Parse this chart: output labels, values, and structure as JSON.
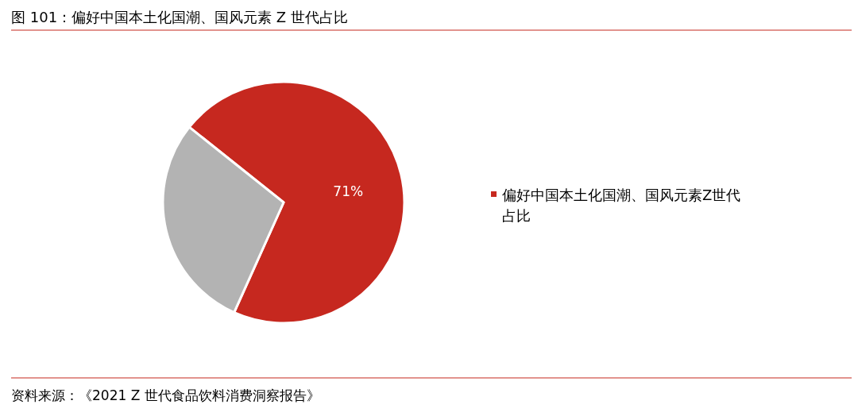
{
  "chart_data": {
    "type": "pie",
    "title": "图 101：偏好中国本土化国潮、国风元素 Z 世代占比",
    "categories": [
      "偏好中国本土化国潮、国风元素Z世代占比",
      null
    ],
    "values": [
      71,
      29
    ],
    "colors": [
      "#c6281f",
      "#b3b3b3"
    ],
    "value_labels": [
      "71%",
      null
    ],
    "legend": "right",
    "annotations": [
      "资料来源：《2021 Z 世代食品饮料消费洞察报告》"
    ]
  }
}
